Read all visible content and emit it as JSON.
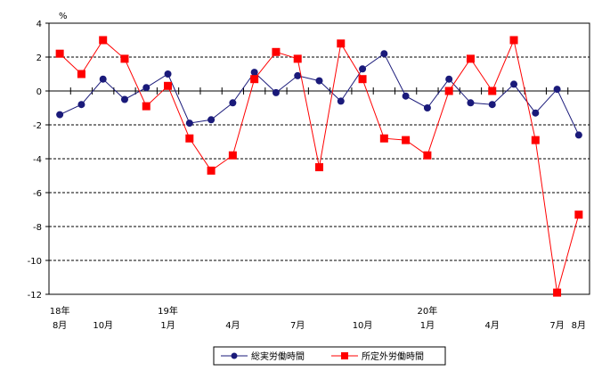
{
  "chart_data": {
    "type": "line",
    "unit_label": "%",
    "ylim": [
      -12,
      4
    ],
    "y_ticks": [
      4,
      2,
      0,
      -2,
      -4,
      -6,
      -8,
      -10,
      -12
    ],
    "grid": true,
    "legend_position": "bottom-center",
    "x_tick_labels": [
      {
        "index": 0,
        "upper": "18年",
        "lower": "8月"
      },
      {
        "index": 2,
        "upper": "",
        "lower": "10月"
      },
      {
        "index": 5,
        "upper": "19年",
        "lower": "1月"
      },
      {
        "index": 8,
        "upper": "",
        "lower": "4月"
      },
      {
        "index": 11,
        "upper": "",
        "lower": "7月"
      },
      {
        "index": 14,
        "upper": "",
        "lower": "10月"
      },
      {
        "index": 17,
        "upper": "20年",
        "lower": "1月"
      },
      {
        "index": 20,
        "upper": "",
        "lower": "4月"
      },
      {
        "index": 23,
        "upper": "",
        "lower": "7月"
      },
      {
        "index": 24,
        "upper": "",
        "lower": "8月"
      }
    ],
    "series": [
      {
        "name": "総実労働時間",
        "color": "#1a1a7a",
        "marker": "circle",
        "values": [
          -1.4,
          -0.8,
          0.7,
          -0.5,
          0.2,
          1.0,
          -1.9,
          -1.7,
          -0.7,
          1.1,
          -0.1,
          0.9,
          0.6,
          -0.6,
          1.3,
          2.2,
          -0.3,
          -1.0,
          0.7,
          -0.7,
          -0.8,
          0.4,
          -1.3,
          0.1,
          -2.6
        ]
      },
      {
        "name": "所定外労働時間",
        "color": "#ff0000",
        "marker": "square",
        "values": [
          2.2,
          1.0,
          3.0,
          1.9,
          -0.9,
          0.3,
          -2.8,
          -4.7,
          -3.8,
          0.7,
          2.3,
          1.9,
          -4.5,
          2.8,
          0.7,
          -2.8,
          -2.9,
          -3.8,
          0.0,
          1.9,
          0.0,
          3.0,
          -2.9,
          -11.9,
          -7.3
        ]
      }
    ]
  }
}
